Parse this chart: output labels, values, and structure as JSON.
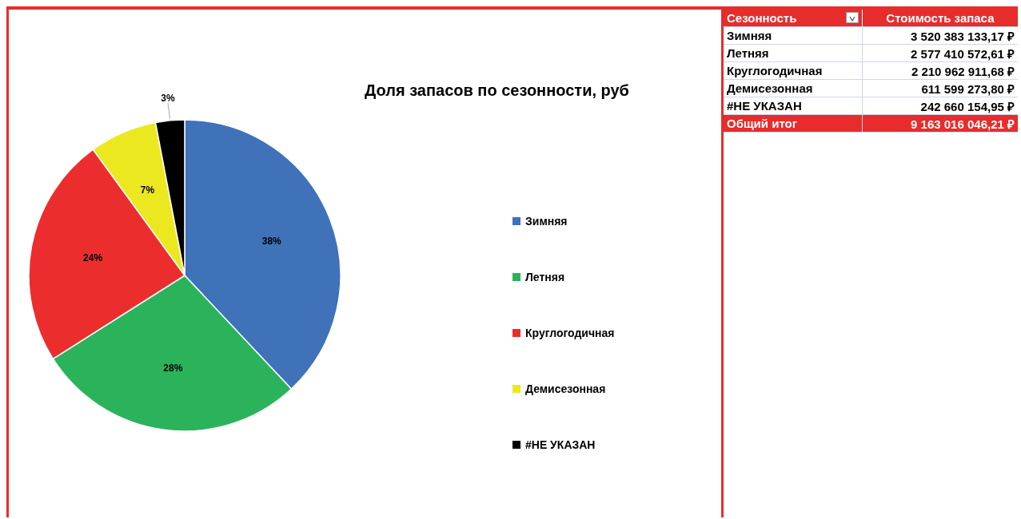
{
  "chart_data": [
    {
      "type": "pie",
      "title": "Доля запасов по сезонности, руб",
      "categories": [
        "Зимняя",
        "Летняя",
        "Круглогодичная",
        "Демисезонная",
        "#НЕ УКАЗАН"
      ],
      "values": [
        38,
        28,
        24,
        7,
        3
      ],
      "colors": [
        "#3f72b9",
        "#2bb35b",
        "#ec2d2d",
        "#ece81f",
        "#000000"
      ],
      "value_labels": [
        "38%",
        "28%",
        "24%",
        "7%",
        "3%"
      ],
      "legend": "right"
    },
    {
      "type": "other",
      "annotations": [
        "Сезонность",
        "Стоимость запаса"
      ],
      "categories": [
        "Зимняя",
        "Летняя",
        "Круглогодичная",
        "Демисезонная",
        "#НЕ УКАЗАН",
        "Общий итог"
      ],
      "value_labels": [
        "3 520 383 133,17 ₽",
        "2 577 410 572,61 ₽",
        "2 210 962 911,68 ₽",
        "611 599 273,80 ₽",
        "242 660 154,95 ₽",
        "9 163 016 046,21 ₽"
      ]
    }
  ]
}
